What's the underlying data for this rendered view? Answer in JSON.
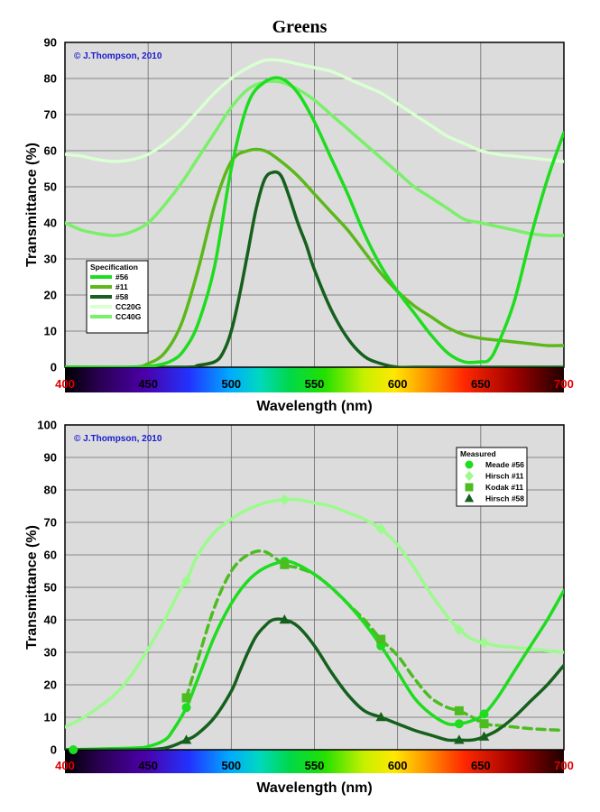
{
  "page": {
    "title": "Greens"
  },
  "colors": {
    "s56": "#1edc1e",
    "s11": "#5cb81a",
    "s58": "#15601c",
    "cc20g": "#d9ffd2",
    "cc40g": "#7af06a",
    "meade56": "#1edc1e",
    "hirsch11": "#9dfa8e",
    "kodak11": "#4cbc21",
    "hirsch58": "#15601c"
  },
  "chart_data": [
    {
      "type": "line",
      "title": "Greens",
      "xlabel": "Wavelength (nm)",
      "ylabel": "Transmittance (%)",
      "xlim": [
        400,
        700
      ],
      "ylim": [
        0,
        90
      ],
      "xticks": [
        "400",
        "450",
        "500",
        "550",
        "600",
        "650",
        "700"
      ],
      "yticks": [
        "0",
        "10",
        "20",
        "30",
        "40",
        "50",
        "60",
        "70",
        "80",
        "90"
      ],
      "grid": true,
      "spectrum_bar": true,
      "annotation": "© J.Thompson, 2010",
      "legend": {
        "title": "Specification",
        "placement": "left"
      },
      "series": [
        {
          "name": "#56",
          "color_key": "s56",
          "width": 3.5,
          "x": [
            400,
            440,
            455,
            465,
            472,
            480,
            490,
            500,
            510,
            520,
            530,
            540,
            550,
            560,
            570,
            580,
            590,
            600,
            610,
            620,
            630,
            640,
            650,
            655,
            660,
            670,
            680,
            690,
            700
          ],
          "y": [
            0,
            0,
            0.5,
            2,
            5,
            12,
            28,
            55,
            73,
            79,
            80,
            76,
            68,
            58,
            48,
            37,
            28,
            21,
            15,
            9,
            4,
            1.5,
            1.5,
            2,
            6,
            18,
            36,
            52,
            65
          ]
        },
        {
          "name": "#11",
          "color_key": "s11",
          "width": 3.5,
          "x": [
            400,
            440,
            450,
            460,
            470,
            480,
            490,
            500,
            510,
            520,
            530,
            540,
            550,
            560,
            570,
            580,
            590,
            600,
            610,
            620,
            630,
            640,
            650,
            660,
            670,
            680,
            690,
            700
          ],
          "y": [
            0,
            0,
            1,
            4,
            12,
            27,
            45,
            57,
            60,
            60,
            57,
            53,
            48,
            43,
            38,
            32,
            26,
            21,
            17,
            14,
            11,
            9,
            8,
            7.5,
            7,
            6.5,
            6,
            6
          ]
        },
        {
          "name": "#58",
          "color_key": "s58",
          "width": 3.5,
          "x": [
            400,
            470,
            480,
            490,
            495,
            500,
            505,
            510,
            515,
            520,
            525,
            530,
            535,
            540,
            545,
            550,
            560,
            570,
            580,
            590,
            600,
            610,
            620,
            700
          ],
          "y": [
            0,
            0,
            0.5,
            1.5,
            4,
            10,
            20,
            32,
            44,
            52,
            54,
            53,
            47,
            40,
            34,
            27,
            16,
            8,
            3,
            1,
            0,
            0,
            0,
            0
          ]
        },
        {
          "name": "CC20G",
          "color_key": "cc20g",
          "width": 3.5,
          "x": [
            400,
            410,
            420,
            430,
            440,
            450,
            460,
            470,
            480,
            490,
            500,
            510,
            520,
            530,
            540,
            550,
            560,
            570,
            580,
            590,
            600,
            610,
            620,
            630,
            640,
            650,
            660,
            670,
            680,
            690,
            700
          ],
          "y": [
            59,
            58.5,
            57.5,
            57,
            57.5,
            59,
            62,
            66,
            71,
            76,
            80,
            83,
            85,
            85,
            84,
            83,
            82,
            80,
            78,
            76,
            73,
            70,
            67,
            64,
            62,
            60,
            59,
            58.5,
            58,
            57.5,
            57
          ]
        },
        {
          "name": "CC40G",
          "color_key": "cc40g",
          "width": 3.5,
          "x": [
            400,
            410,
            420,
            430,
            440,
            450,
            460,
            470,
            480,
            490,
            500,
            510,
            520,
            530,
            540,
            550,
            560,
            570,
            580,
            590,
            600,
            610,
            620,
            630,
            640,
            650,
            660,
            670,
            680,
            690,
            700
          ],
          "y": [
            40,
            38,
            37,
            36.5,
            37.5,
            40,
            45,
            51,
            58,
            65,
            72,
            77,
            79,
            79,
            77,
            74,
            70,
            66,
            62,
            58,
            54,
            50,
            47,
            44,
            41,
            40,
            39,
            38,
            37,
            36.5,
            36.5
          ]
        }
      ]
    },
    {
      "type": "line",
      "xlabel": "Wavelength (nm)",
      "ylabel": "Transmittance (%)",
      "xlim": [
        400,
        700
      ],
      "ylim": [
        0,
        100
      ],
      "xticks": [
        "400",
        "450",
        "500",
        "550",
        "600",
        "650",
        "700"
      ],
      "yticks": [
        "0",
        "10",
        "20",
        "30",
        "40",
        "50",
        "60",
        "70",
        "80",
        "90",
        "100"
      ],
      "grid": true,
      "spectrum_bar": true,
      "annotation": "© J.Thompson, 2010",
      "legend": {
        "title": "Measured",
        "placement": "top-right"
      },
      "series": [
        {
          "name": "Meade #56",
          "color_key": "meade56",
          "marker": "circle",
          "width": 3.5,
          "x": [
            400,
            440,
            450,
            460,
            465,
            473,
            480,
            490,
            500,
            510,
            520,
            532,
            540,
            550,
            560,
            570,
            580,
            590,
            600,
            610,
            620,
            630,
            637,
            645,
            652,
            660,
            670,
            680,
            690,
            700
          ],
          "y": [
            0,
            0.5,
            1,
            3,
            6,
            13,
            22,
            35,
            45,
            52,
            56,
            58,
            57,
            54,
            50,
            45,
            39,
            32,
            24,
            16,
            11,
            8,
            8,
            9,
            11,
            16,
            24,
            32,
            40,
            49
          ],
          "markers_x": [
            405,
            473,
            532,
            590,
            637,
            652
          ],
          "markers_y": [
            0,
            13,
            58,
            32,
            8,
            11
          ]
        },
        {
          "name": "Hirsch #11",
          "color_key": "hirsch11",
          "marker": "diamond",
          "width": 3.5,
          "x": [
            400,
            410,
            420,
            430,
            440,
            450,
            460,
            465,
            470,
            473,
            480,
            490,
            500,
            510,
            520,
            532,
            540,
            550,
            560,
            570,
            580,
            590,
            600,
            610,
            620,
            630,
            637,
            645,
            652,
            660,
            670,
            680,
            690,
            700
          ],
          "y": [
            7,
            9.5,
            13,
            17,
            23,
            31,
            40,
            45,
            50,
            52,
            60,
            67,
            71,
            74,
            76,
            77,
            77,
            76,
            75,
            73,
            71,
            68,
            63,
            56,
            48,
            41,
            37,
            34,
            33,
            32,
            31.5,
            31,
            30.5,
            30
          ],
          "markers_x": [
            473,
            532,
            590,
            637,
            652
          ],
          "markers_y": [
            52,
            77,
            68,
            37,
            33
          ]
        },
        {
          "name": "Kodak #11",
          "color_key": "kodak11",
          "marker": "square",
          "width": 3.5,
          "dashed": true,
          "x": [
            473,
            480,
            490,
            500,
            510,
            520,
            532,
            540,
            550,
            560,
            570,
            580,
            590,
            600,
            610,
            620,
            630,
            637,
            645,
            652,
            660,
            670,
            680,
            690,
            700
          ],
          "y": [
            16,
            28,
            44,
            55,
            60,
            61,
            57,
            56,
            54,
            50,
            45,
            40,
            34,
            29,
            22,
            16,
            13,
            12,
            10,
            8,
            7.5,
            7,
            6.5,
            6.2,
            6
          ],
          "markers_x": [
            473,
            532,
            590,
            637,
            652
          ],
          "markers_y": [
            16,
            57,
            34,
            12,
            8
          ]
        },
        {
          "name": "Hirsch #58",
          "color_key": "hirsch58",
          "marker": "triangle",
          "width": 3.5,
          "x": [
            400,
            440,
            460,
            473,
            480,
            490,
            500,
            505,
            510,
            515,
            520,
            525,
            532,
            540,
            550,
            560,
            570,
            580,
            590,
            600,
            610,
            620,
            630,
            637,
            645,
            652,
            660,
            670,
            680,
            690,
            700
          ],
          "y": [
            0,
            0,
            0.5,
            3,
            5,
            10,
            18,
            24,
            30,
            35,
            38,
            40,
            40,
            38,
            32,
            24,
            17,
            12,
            10,
            8,
            6,
            4.5,
            3,
            3,
            3,
            4,
            6,
            10,
            15,
            20,
            26
          ],
          "markers_x": [
            473,
            532,
            590,
            637,
            652
          ],
          "markers_y": [
            3,
            40,
            10,
            3,
            4
          ]
        }
      ]
    }
  ]
}
